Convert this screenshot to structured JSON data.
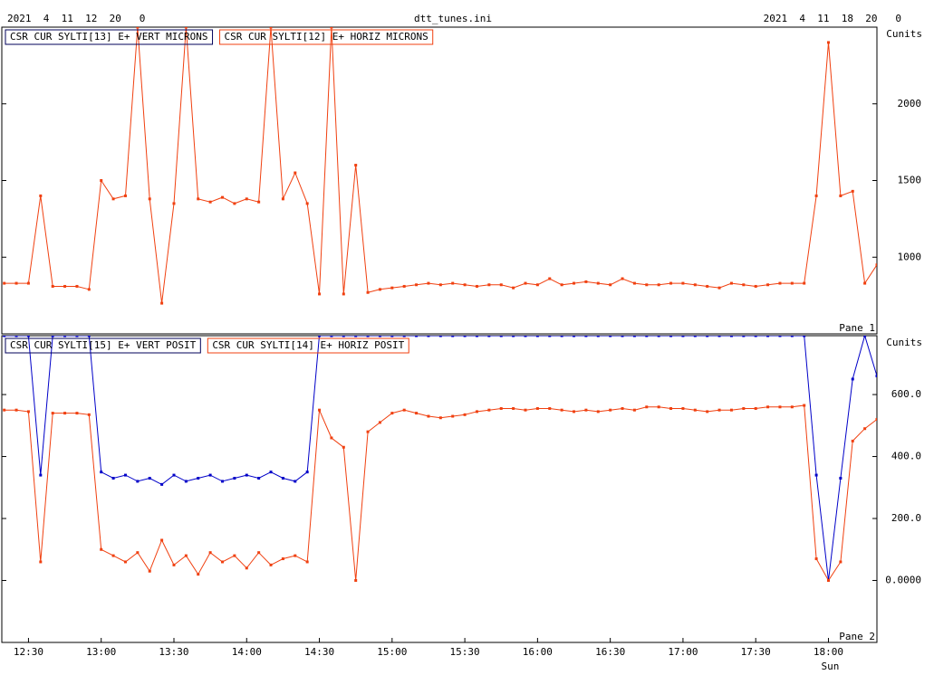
{
  "title": "dtt_tunes.ini",
  "start_stamp": "2021  4  11  12  20   0",
  "end_stamp": "2021  4  11  18  20   0",
  "chart_data": [
    {
      "type": "line",
      "pane_label": "Pane 1",
      "unit_label": "Cunits",
      "xlim": [
        "12:19",
        "18:20"
      ],
      "ylim": [
        500,
        2500
      ],
      "yticks": [
        1000,
        1500,
        2000
      ],
      "x": [
        "12:20",
        "12:25",
        "12:30",
        "12:35",
        "12:40",
        "12:45",
        "12:50",
        "12:55",
        "13:00",
        "13:05",
        "13:10",
        "13:15",
        "13:20",
        "13:25",
        "13:30",
        "13:35",
        "13:40",
        "13:45",
        "13:50",
        "13:55",
        "14:00",
        "14:05",
        "14:10",
        "14:15",
        "14:20",
        "14:25",
        "14:30",
        "14:35",
        "14:40",
        "14:45",
        "14:50",
        "14:55",
        "15:00",
        "15:05",
        "15:10",
        "15:15",
        "15:20",
        "15:25",
        "15:30",
        "15:35",
        "15:40",
        "15:45",
        "15:50",
        "15:55",
        "16:00",
        "16:05",
        "16:10",
        "16:15",
        "16:20",
        "16:25",
        "16:30",
        "16:35",
        "16:40",
        "16:45",
        "16:50",
        "16:55",
        "17:00",
        "17:05",
        "17:10",
        "17:15",
        "17:20",
        "17:25",
        "17:30",
        "17:35",
        "17:40",
        "17:45",
        "17:50",
        "17:55",
        "18:00",
        "18:05",
        "18:10",
        "18:15",
        "18:20"
      ],
      "series": [
        {
          "name": "CSR CUR SYLTI[13] E+ VERT MICRONS",
          "color": "#0000c8",
          "values": [
            null,
            null,
            null,
            null,
            null,
            null,
            null,
            null,
            null,
            null,
            null,
            null,
            null,
            null,
            null,
            null,
            null,
            null,
            null,
            null,
            null,
            null,
            null,
            null,
            null,
            null,
            null,
            null,
            null,
            null,
            null,
            null,
            null,
            null,
            null,
            null,
            null,
            null,
            null,
            null,
            null,
            null,
            null,
            null,
            null,
            null,
            null,
            null,
            null,
            null,
            null,
            null,
            null,
            null,
            null,
            null,
            null,
            null,
            null,
            null,
            null,
            null,
            null,
            null,
            null,
            null,
            null,
            null,
            null,
            null,
            null,
            null,
            null
          ]
        },
        {
          "name": "CSR CUR SYLTI[12] E+ HORIZ MICRONS",
          "color": "#f04010",
          "values": [
            830,
            830,
            830,
            1400,
            810,
            810,
            810,
            790,
            1500,
            1380,
            1400,
            2500,
            1380,
            700,
            1350,
            2500,
            1380,
            1360,
            1390,
            1350,
            1380,
            1360,
            2500,
            1380,
            1550,
            1350,
            760,
            2500,
            760,
            1600,
            770,
            790,
            800,
            810,
            820,
            830,
            820,
            830,
            820,
            810,
            820,
            820,
            800,
            830,
            820,
            860,
            820,
            830,
            840,
            830,
            820,
            860,
            830,
            820,
            820,
            830,
            830,
            820,
            810,
            800,
            830,
            820,
            810,
            820,
            830,
            830,
            830,
            1400,
            2400,
            1400,
            1430,
            830,
            950
          ]
        }
      ]
    },
    {
      "type": "line",
      "pane_label": "Pane 2",
      "unit_label": "Cunits",
      "day_label": "Sun",
      "xlim": [
        "12:19",
        "18:20"
      ],
      "xticks": [
        "12:30",
        "13:00",
        "13:30",
        "14:00",
        "14:30",
        "15:00",
        "15:30",
        "16:00",
        "16:30",
        "17:00",
        "17:30",
        "18:00"
      ],
      "ylim": [
        -200,
        790
      ],
      "yticks": [
        {
          "value": 0,
          "label": "0.0000"
        },
        {
          "value": 200,
          "label": "200.0"
        },
        {
          "value": 400,
          "label": "400.0"
        },
        {
          "value": 600,
          "label": "600.0"
        }
      ],
      "x": [
        "12:20",
        "12:25",
        "12:30",
        "12:35",
        "12:40",
        "12:45",
        "12:50",
        "12:55",
        "13:00",
        "13:05",
        "13:10",
        "13:15",
        "13:20",
        "13:25",
        "13:30",
        "13:35",
        "13:40",
        "13:45",
        "13:50",
        "13:55",
        "14:00",
        "14:05",
        "14:10",
        "14:15",
        "14:20",
        "14:25",
        "14:30",
        "14:35",
        "14:40",
        "14:45",
        "14:50",
        "14:55",
        "15:00",
        "15:05",
        "15:10",
        "15:15",
        "15:20",
        "15:25",
        "15:30",
        "15:35",
        "15:40",
        "15:45",
        "15:50",
        "15:55",
        "16:00",
        "16:05",
        "16:10",
        "16:15",
        "16:20",
        "16:25",
        "16:30",
        "16:35",
        "16:40",
        "16:45",
        "16:50",
        "16:55",
        "17:00",
        "17:05",
        "17:10",
        "17:15",
        "17:20",
        "17:25",
        "17:30",
        "17:35",
        "17:40",
        "17:45",
        "17:50",
        "17:55",
        "18:00",
        "18:05",
        "18:10",
        "18:15",
        "18:20"
      ],
      "series": [
        {
          "name": "CSR CUR SYLTI[15] E+ VERT POSIT",
          "color": "#0000c8",
          "values": [
            790,
            790,
            790,
            340,
            790,
            790,
            790,
            790,
            350,
            330,
            340,
            320,
            330,
            310,
            340,
            320,
            330,
            340,
            320,
            330,
            340,
            330,
            350,
            330,
            320,
            350,
            790,
            790,
            790,
            790,
            790,
            790,
            790,
            790,
            790,
            790,
            790,
            790,
            790,
            790,
            790,
            790,
            790,
            790,
            790,
            790,
            790,
            790,
            790,
            790,
            790,
            790,
            790,
            790,
            790,
            790,
            790,
            790,
            790,
            790,
            790,
            790,
            790,
            790,
            790,
            790,
            790,
            340,
            0,
            330,
            650,
            790,
            660
          ]
        },
        {
          "name": "CSR CUR SYLTI[14] E+ HORIZ POSIT",
          "color": "#f04010",
          "values": [
            550,
            550,
            545,
            60,
            540,
            540,
            540,
            535,
            100,
            80,
            60,
            90,
            30,
            130,
            50,
            80,
            20,
            90,
            60,
            80,
            40,
            90,
            50,
            70,
            80,
            60,
            550,
            460,
            430,
            0,
            480,
            510,
            540,
            550,
            540,
            530,
            525,
            530,
            535,
            545,
            550,
            555,
            555,
            550,
            555,
            555,
            550,
            545,
            550,
            545,
            550,
            555,
            550,
            560,
            560,
            555,
            555,
            550,
            545,
            550,
            550,
            555,
            555,
            560,
            560,
            560,
            565,
            70,
            0,
            60,
            450,
            490,
            520
          ]
        }
      ]
    }
  ]
}
